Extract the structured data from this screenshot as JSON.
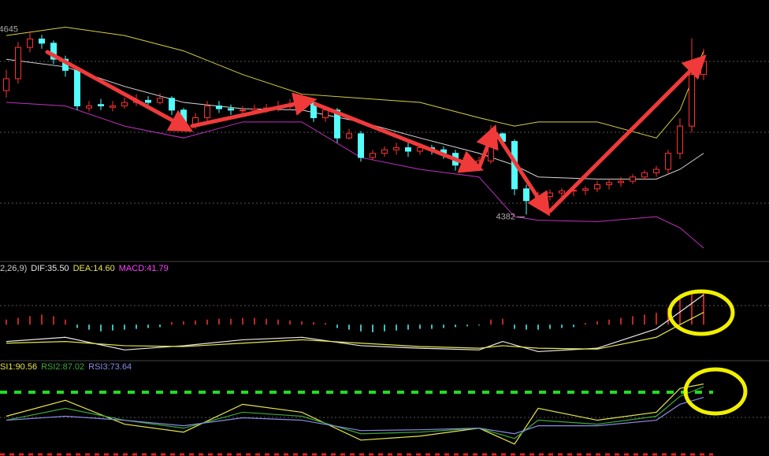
{
  "chart_data": [
    {
      "type": "candlestick",
      "open": [
        4560,
        4577,
        4622,
        4634,
        4628,
        4605,
        4589,
        4535,
        4540,
        4536,
        4538,
        4543,
        4546,
        4543,
        4549,
        4532,
        4512,
        4521,
        4538,
        4534,
        4532,
        4532,
        4534,
        4535,
        4537,
        4540,
        4543,
        4521,
        4532,
        4492,
        4498,
        4464,
        4470,
        4475,
        4478,
        4473,
        4478,
        4475,
        4470,
        4453,
        4453,
        4459,
        4498,
        4487,
        4419,
        4402,
        4408,
        4413,
        4416,
        4417,
        4419,
        4425,
        4428,
        4430,
        4436,
        4442,
        4447,
        4470,
        4509,
        4583
      ],
      "high": [
        4590,
        4630,
        4645,
        4640,
        4632,
        4610,
        4592,
        4545,
        4548,
        4545,
        4550,
        4555,
        4552,
        4556,
        4552,
        4535,
        4528,
        4545,
        4545,
        4540,
        4538,
        4540,
        4541,
        4545,
        4548,
        4555,
        4548,
        4538,
        4535,
        4505,
        4502,
        4475,
        4480,
        4485,
        4485,
        4484,
        4482,
        4480,
        4475,
        4460,
        4465,
        4510,
        4500,
        4490,
        4425,
        4415,
        4418,
        4420,
        4422,
        4423,
        4430,
        4433,
        4436,
        4440,
        4446,
        4452,
        4475,
        4520,
        4635,
        4620
      ],
      "low": [
        4550,
        4570,
        4615,
        4620,
        4598,
        4580,
        4532,
        4530,
        4532,
        4530,
        4534,
        4538,
        4538,
        4540,
        4525,
        4505,
        4505,
        4515,
        4528,
        4525,
        4525,
        4526,
        4528,
        4530,
        4532,
        4535,
        4515,
        4515,
        4485,
        4490,
        4458,
        4460,
        4465,
        4468,
        4465,
        4468,
        4468,
        4462,
        4445,
        4445,
        4448,
        4455,
        4480,
        4410,
        4382,
        4396,
        4402,
        4406,
        4408,
        4410,
        4414,
        4418,
        4422,
        4426,
        4432,
        4436,
        4440,
        4462,
        4500,
        4575
      ],
      "close": [
        4577,
        4622,
        4634,
        4628,
        4605,
        4589,
        4538,
        4538,
        4538,
        4538,
        4543,
        4546,
        4543,
        4549,
        4532,
        4512,
        4521,
        4538,
        4534,
        4532,
        4532,
        4534,
        4535,
        4537,
        4540,
        4543,
        4521,
        4532,
        4492,
        4498,
        4464,
        4470,
        4475,
        4478,
        4473,
        4478,
        4475,
        4470,
        4453,
        4453,
        4459,
        4498,
        4487,
        4419,
        4402,
        4408,
        4413,
        4416,
        4417,
        4419,
        4425,
        4428,
        4430,
        4436,
        4442,
        4447,
        4470,
        4509,
        4583,
        4602
      ],
      "up_color": "#ff3232",
      "down_color": "#54fcfc",
      "ylim": [
        4317,
        4690
      ],
      "bands": [
        {
          "color": "#d8d040",
          "x": [
            0,
            5,
            10,
            15,
            20,
            25,
            30,
            35,
            40,
            43,
            45,
            50,
            55,
            57,
            59
          ],
          "values": [
            4639,
            4651,
            4639,
            4617,
            4583,
            4555,
            4549,
            4543,
            4521,
            4509,
            4515,
            4515,
            4492,
            4532,
            4617
          ]
        },
        {
          "color": "#d8d8d8",
          "x": [
            0,
            5,
            10,
            15,
            20,
            25,
            30,
            35,
            40,
            43,
            45,
            50,
            55,
            57,
            59
          ],
          "values": [
            4605,
            4594,
            4566,
            4543,
            4534,
            4532,
            4515,
            4492,
            4470,
            4453,
            4436,
            4433,
            4433,
            4447,
            4470
          ]
        },
        {
          "color": "#c030c0",
          "x": [
            0,
            5,
            10,
            15,
            20,
            25,
            30,
            35,
            40,
            43,
            45,
            50,
            55,
            57,
            59
          ],
          "values": [
            4543,
            4538,
            4509,
            4492,
            4515,
            4515,
            4464,
            4447,
            4436,
            4379,
            4374,
            4372,
            4379,
            4363,
            4334
          ]
        }
      ],
      "annotations": [
        "4645",
        "4382"
      ]
    },
    {
      "type": "macd",
      "title": "2,26,9)",
      "ylim": [
        -40,
        60
      ],
      "macd_name": "MACD:41.79",
      "macd_color": "#ff40ff",
      "values": [
        6,
        8,
        10,
        12,
        10,
        6,
        -4,
        -6,
        -8,
        -7,
        -6,
        -5,
        -4,
        -3,
        3,
        4,
        5,
        6,
        7,
        7,
        8,
        8,
        7,
        6,
        5,
        4,
        3,
        2,
        -4,
        -6,
        -8,
        -9,
        -8,
        -7,
        -6,
        -5,
        -5,
        -4,
        -3,
        -2,
        -1,
        6,
        7,
        -5,
        -6,
        -6,
        -5,
        -4,
        -3,
        2,
        4,
        6,
        8,
        10,
        12,
        14,
        20,
        30,
        38,
        41.79
      ],
      "series": [
        {
          "name": "DIF:35.50",
          "color": "#e8e8e8",
          "x": [
            0,
            5,
            10,
            15,
            20,
            25,
            30,
            35,
            40,
            42,
            45,
            50,
            55,
            57,
            59
          ],
          "values": [
            -20,
            -15,
            -30,
            -25,
            -18,
            -15,
            -25,
            -28,
            -30,
            -20,
            -32,
            -28,
            -5,
            15,
            35.5
          ]
        },
        {
          "name": "DEA:14.60",
          "color": "#e6e64c",
          "x": [
            0,
            5,
            10,
            15,
            20,
            25,
            30,
            35,
            40,
            42,
            45,
            50,
            55,
            57,
            59
          ],
          "values": [
            -22,
            -20,
            -25,
            -26,
            -22,
            -18,
            -22,
            -26,
            -28,
            -25,
            -28,
            -29,
            -15,
            0,
            14.6
          ]
        }
      ]
    },
    {
      "type": "rsi",
      "ylim": [
        0,
        100
      ],
      "series": [
        {
          "name": "SI1:90.56",
          "color": "#e6e64c",
          "x": [
            0,
            5,
            10,
            15,
            20,
            25,
            30,
            35,
            40,
            43,
            45,
            50,
            55,
            57,
            59
          ],
          "values": [
            50,
            70,
            40,
            30,
            65,
            55,
            20,
            25,
            35,
            15,
            60,
            45,
            55,
            85,
            90.56
          ]
        },
        {
          "name": "RSI2:87.02",
          "color": "#3ca83c",
          "x": [
            0,
            5,
            10,
            15,
            20,
            25,
            30,
            35,
            40,
            43,
            45,
            50,
            55,
            57,
            59
          ],
          "values": [
            45,
            60,
            45,
            35,
            55,
            50,
            28,
            30,
            35,
            22,
            45,
            40,
            50,
            75,
            87.02
          ]
        },
        {
          "name": "RSI3:73.64",
          "color": "#8a8ae6",
          "x": [
            0,
            5,
            10,
            15,
            20,
            25,
            30,
            35,
            40,
            43,
            45,
            50,
            55,
            57,
            59
          ],
          "values": [
            45,
            50,
            45,
            38,
            48,
            45,
            32,
            33,
            35,
            28,
            38,
            38,
            45,
            65,
            73.64
          ]
        }
      ]
    }
  ]
}
